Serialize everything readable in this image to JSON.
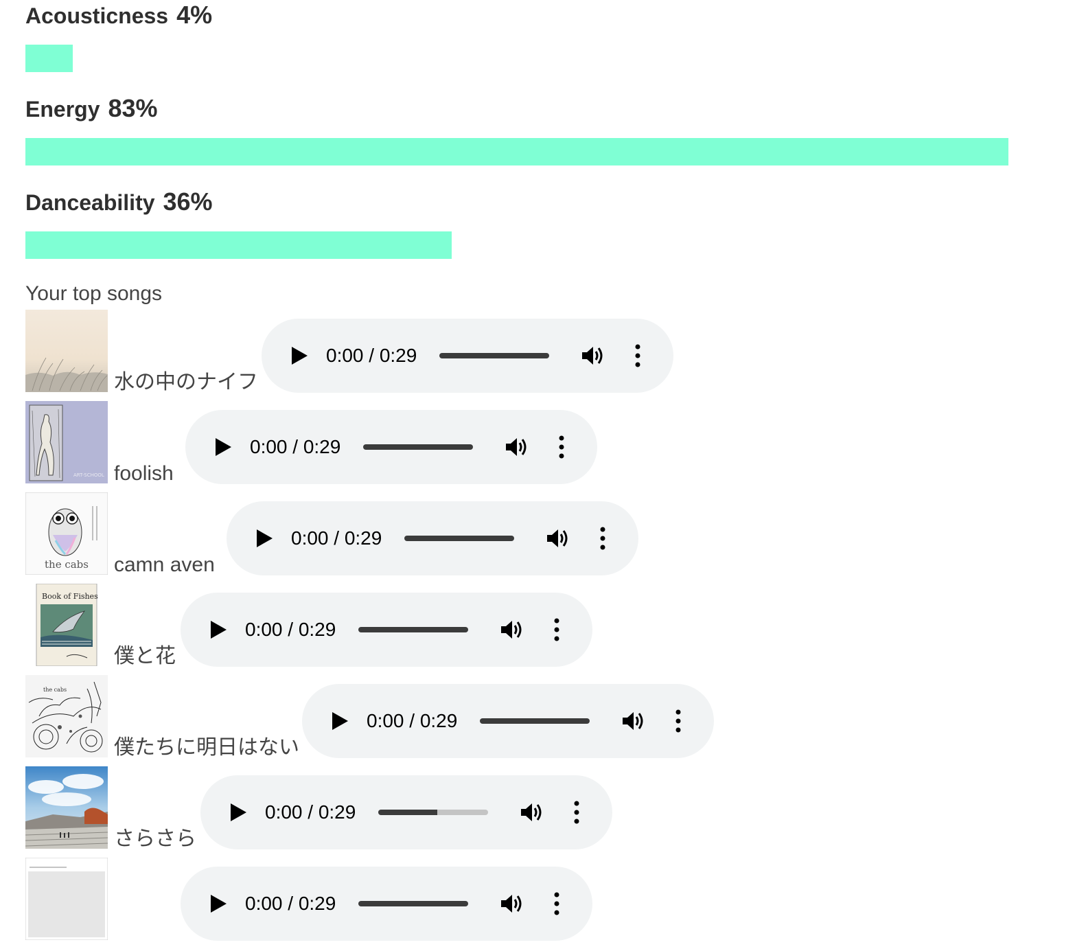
{
  "features": [
    {
      "label": "Acousticness",
      "value_text": "4%",
      "value": 4
    },
    {
      "label": "Energy",
      "value_text": "83%",
      "value": 83
    },
    {
      "label": "Danceability",
      "value_text": "36%",
      "value": 36
    }
  ],
  "colors": {
    "bar": "#7fffd4",
    "player_bg": "#f1f3f4"
  },
  "top_songs": {
    "title": "Your top songs",
    "songs": [
      {
        "name": "水の中のナイフ",
        "time": "0:00 / 0:29",
        "progress": 1.0,
        "cover_icon": "album-cover-grass-field"
      },
      {
        "name": "foolish",
        "time": "0:00 / 0:29",
        "progress": 1.0,
        "cover_icon": "album-cover-figure-drawing"
      },
      {
        "name": "camn aven",
        "time": "0:00 / 0:29",
        "progress": 1.0,
        "cover_icon": "album-cover-owl"
      },
      {
        "name": "僕と花",
        "time": "0:00 / 0:29",
        "progress": 1.0,
        "cover_icon": "album-cover-book-of-fishes"
      },
      {
        "name": "僕たちに明日はない",
        "time": "0:00 / 0:29",
        "progress": 1.0,
        "cover_icon": "album-cover-ink-illustration"
      },
      {
        "name": "さらさら",
        "time": "0:00 / 0:29",
        "progress": 0.54,
        "cover_icon": "album-cover-sky-landscape"
      },
      {
        "name": "",
        "time": "0:00 / 0:29",
        "progress": 1.0,
        "cover_icon": "album-cover-white"
      }
    ]
  }
}
